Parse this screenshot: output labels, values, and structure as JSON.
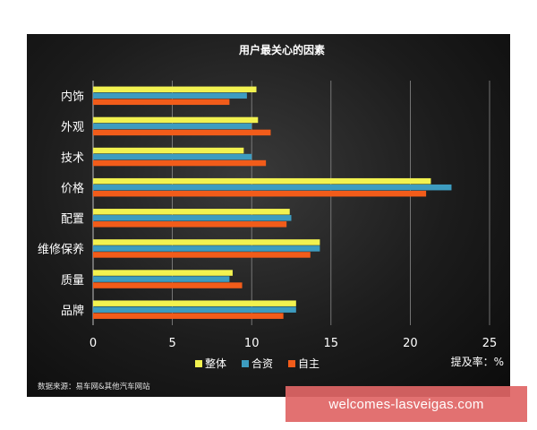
{
  "chart_data": {
    "type": "bar",
    "orientation": "horizontal",
    "title": "用户最关心的因素",
    "categories": [
      "内饰",
      "外观",
      "技术",
      "价格",
      "配置",
      "维修保养",
      "质量",
      "品牌"
    ],
    "series": [
      {
        "name": "整体",
        "color": "#f2f250",
        "values": [
          10.3,
          10.4,
          9.5,
          21.3,
          12.4,
          14.3,
          8.8,
          12.8
        ]
      },
      {
        "name": "合资",
        "color": "#3d9cc0",
        "values": [
          9.7,
          10.0,
          10.0,
          22.6,
          12.5,
          14.3,
          8.6,
          12.8
        ]
      },
      {
        "name": "自主",
        "color": "#f25c1a",
        "values": [
          8.6,
          11.2,
          10.9,
          21.0,
          12.2,
          13.7,
          9.4,
          12.0
        ]
      }
    ],
    "xlim": [
      0,
      25
    ],
    "xticks": [
      0,
      5,
      10,
      15,
      20,
      25
    ],
    "xlabel": "提及率：%",
    "grid": true,
    "legend": "bottom"
  },
  "source_note": "数据来源：易车网&其他汽车网站",
  "watermark": "welcomes-lasveigas.com"
}
